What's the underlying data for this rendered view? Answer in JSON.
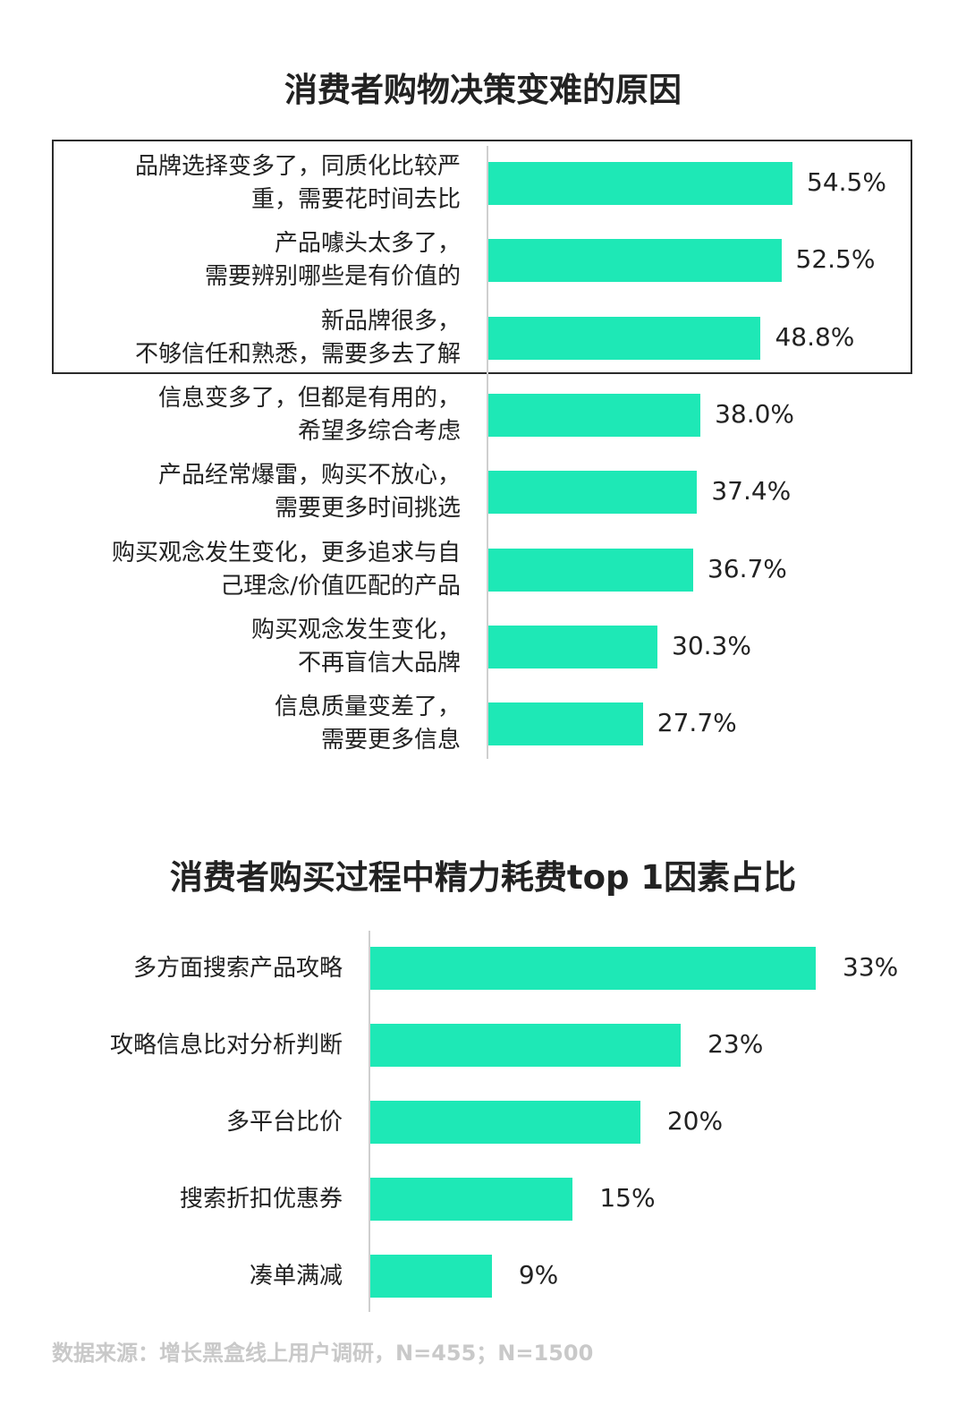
{
  "chart_data": [
    {
      "type": "bar",
      "orientation": "horizontal",
      "title": "消费者购物决策变难的原因",
      "categories": [
        "品牌选择变多了，同质化比较严\n重，需要花时间去比",
        "产品噱头太多了，\n需要辨别哪些是有价值的",
        "新品牌很多，\n不够信任和熟悉，需要多去了解",
        "信息变多了，但都是有用的，\n希望多综合考虑",
        "产品经常爆雷，购买不放心，\n需要更多时间挑选",
        "购买观念发生变化，更多追求与自\n己理念/价值匹配的产品",
        "购买观念发生变化，\n不再盲信大品牌",
        "信息质量变差了，\n需要更多信息"
      ],
      "values": [
        54.5,
        52.5,
        48.8,
        38.0,
        37.4,
        36.7,
        30.3,
        27.7
      ],
      "value_labels": [
        "54.5%",
        "52.5%",
        "48.8%",
        "38.0%",
        "37.4%",
        "36.7%",
        "30.3%",
        "27.7%"
      ],
      "highlighted_categories": 3,
      "xlim": [
        0,
        100
      ],
      "unit": "%"
    },
    {
      "type": "bar",
      "orientation": "horizontal",
      "title": "消费者购买过程中精力耗费top 1因素占比",
      "categories": [
        "多方面搜索产品攻略",
        "攻略信息比对分析判断",
        "多平台比价",
        "搜索折扣优惠券",
        "凑单满减"
      ],
      "values": [
        33,
        23,
        20,
        15,
        9
      ],
      "value_labels": [
        "33%",
        "23%",
        "20%",
        "15%",
        "9%"
      ],
      "xlim": [
        0,
        100
      ],
      "unit": "%"
    }
  ],
  "source": "数据来源：增长黑盒线上用户调研，N=455；N=1500",
  "colors": {
    "bar": "#1ee8b6",
    "text": "#222222",
    "source": "#c9c9c9",
    "box": "#2b2b2b"
  }
}
